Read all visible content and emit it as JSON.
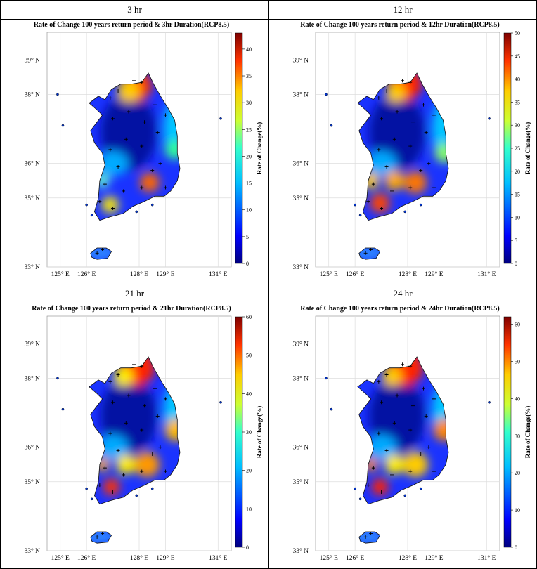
{
  "panels": [
    {
      "header": "3 hr",
      "title": "Rate of Change 100 years return period & 3hr Duration(RCP8.5)",
      "cbar_ticks": [
        "0",
        "5",
        "10",
        "15",
        "20",
        "25",
        "30",
        "35",
        "40"
      ],
      "cbar_max": 43,
      "cbar_label": "Rate of Change(%)"
    },
    {
      "header": "12 hr",
      "title": "Rate of Change 100 years return period & 12hr Duration(RCP8.5)",
      "cbar_ticks": [
        "0",
        "5",
        "10",
        "15",
        "20",
        "25",
        "30",
        "35",
        "40",
        "45",
        "50"
      ],
      "cbar_max": 50,
      "cbar_label": "Rate of Change(%)"
    },
    {
      "header": "21 hr",
      "title": "Rate of Change 100 years return period & 21hr Duration(RCP8.5)",
      "cbar_ticks": [
        "0",
        "10",
        "20",
        "30",
        "40",
        "50",
        "60"
      ],
      "cbar_max": 60,
      "cbar_label": "Rate of Change(%)"
    },
    {
      "header": "24 hr",
      "title": "Rate of Change 100 years return period & 24hr Duration(RCP8.5)",
      "cbar_ticks": [
        "0",
        "10",
        "20",
        "30",
        "40",
        "50",
        "60"
      ],
      "cbar_max": 62,
      "cbar_label": "Rate of Change(%)"
    }
  ],
  "lat_ticks": [
    {
      "v": 39,
      "label": "39"
    },
    {
      "v": 38,
      "label": "38"
    },
    {
      "v": 36,
      "label": "36"
    },
    {
      "v": 35,
      "label": "35"
    },
    {
      "v": 33,
      "label": "33"
    }
  ],
  "lon_ticks": [
    {
      "v": 125,
      "label": "125"
    },
    {
      "v": 126,
      "label": "126"
    },
    {
      "v": 128,
      "label": "128"
    },
    {
      "v": 129,
      "label": "129"
    },
    {
      "v": 131,
      "label": "131"
    }
  ],
  "lat_suffix": "N",
  "lon_suffix": "E",
  "colors": {
    "low": "#00007f",
    "mid": "#00bfff",
    "high": "#ffff00",
    "top": "#7f0000"
  }
}
